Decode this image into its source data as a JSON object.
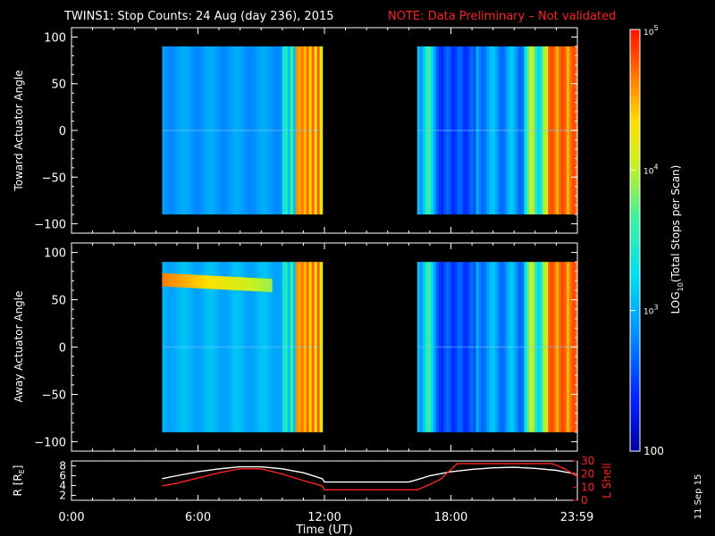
{
  "title": {
    "main": "TWINS1: Stop Counts: 24 Aug (day 236), 2015",
    "note": "NOTE: Data Preliminary – Not validated"
  },
  "colors": {
    "note": "#ff2020",
    "red_curve": "#ff2020",
    "white_curve": "#ffffff",
    "background": "#000000",
    "axis": "#ffffff"
  },
  "datestamp": "11 Sep 15",
  "colorbar": {
    "label_prefix": "LOG",
    "label_sub": "10",
    "label_suffix": "(Total Stops per Scan)",
    "ticks": [
      {
        "base": "10",
        "exp": "5",
        "value": 100000
      },
      {
        "base": "10",
        "exp": "4",
        "value": 10000
      },
      {
        "base": "10",
        "exp": "3",
        "value": 1000
      },
      {
        "base": "100",
        "exp": "",
        "value": 100
      }
    ],
    "scale": "log"
  },
  "chart_data": [
    {
      "type": "heatmap",
      "ylabel": "Toward Actuator Angle",
      "xlim": [
        0,
        24
      ],
      "ylim": [
        -110,
        110
      ],
      "yticks": [
        "100",
        "50",
        "0",
        "−50",
        "−100"
      ],
      "ytick_values": [
        100,
        50,
        0,
        -50,
        -100
      ],
      "data_blocks": [
        {
          "start_hour": 4.3,
          "end_hour": 11.9
        },
        {
          "start_hour": 16.4,
          "end_hour": 24.0
        }
      ],
      "angle_range": [
        -90,
        90
      ],
      "colorscale": "log10 stops per scan, 100 to 100000"
    },
    {
      "type": "heatmap",
      "ylabel": "Away Actuator Angle",
      "xlim": [
        0,
        24
      ],
      "ylim": [
        -110,
        110
      ],
      "yticks": [
        "100",
        "50",
        "0",
        "−50",
        "−100"
      ],
      "ytick_values": [
        100,
        50,
        0,
        -50,
        -100
      ],
      "data_blocks": [
        {
          "start_hour": 4.3,
          "end_hour": 11.9
        },
        {
          "start_hour": 16.4,
          "end_hour": 24.0
        }
      ],
      "angle_range": [
        -90,
        90
      ],
      "features": "band of high counts near +70 deg between 4.3 and 9.5 UT",
      "colorscale": "log10 stops per scan, 100 to 100000"
    },
    {
      "type": "line",
      "xlabel": "Time (UT)",
      "xticks": [
        "0:00",
        "6:00",
        "12:00",
        "18:00",
        "23:59"
      ],
      "xtick_values": [
        0,
        6,
        12,
        18,
        23.98
      ],
      "ylabel_left": "R [R",
      "ylabel_left_sub": "E",
      "ylabel_left_suffix": "]",
      "ylim_left": [
        1,
        9
      ],
      "yticks_left": [
        "2",
        "4",
        "6",
        "8"
      ],
      "ylabel_right": "L Shell",
      "ylim_right": [
        0,
        30
      ],
      "yticks_right": [
        "0",
        "10",
        "20",
        "30"
      ],
      "series": [
        {
          "axis": "left",
          "color": "white",
          "x": [
            4.3,
            5,
            6,
            7,
            8,
            9,
            10,
            11,
            11.9,
            12,
            13,
            14,
            15,
            16,
            16.4,
            17,
            18,
            19,
            20,
            21,
            22,
            23,
            24
          ],
          "y": [
            5.4,
            6.0,
            6.8,
            7.4,
            7.8,
            7.8,
            7.4,
            6.6,
            5.4,
            4.7,
            4.7,
            4.7,
            4.7,
            4.7,
            5.2,
            6.0,
            6.8,
            7.3,
            7.6,
            7.7,
            7.5,
            7.1,
            6.3
          ]
        },
        {
          "axis": "right",
          "color": "red",
          "x": [
            4.3,
            5,
            6,
            7,
            8,
            9,
            10,
            11,
            11.9,
            12,
            16.4,
            17,
            17.5,
            18.3,
            22.8,
            23.4,
            24
          ],
          "y": [
            11,
            13,
            17,
            21,
            24,
            24,
            20,
            15,
            11,
            8,
            8,
            12,
            16,
            28,
            28,
            24,
            18
          ]
        }
      ]
    }
  ]
}
